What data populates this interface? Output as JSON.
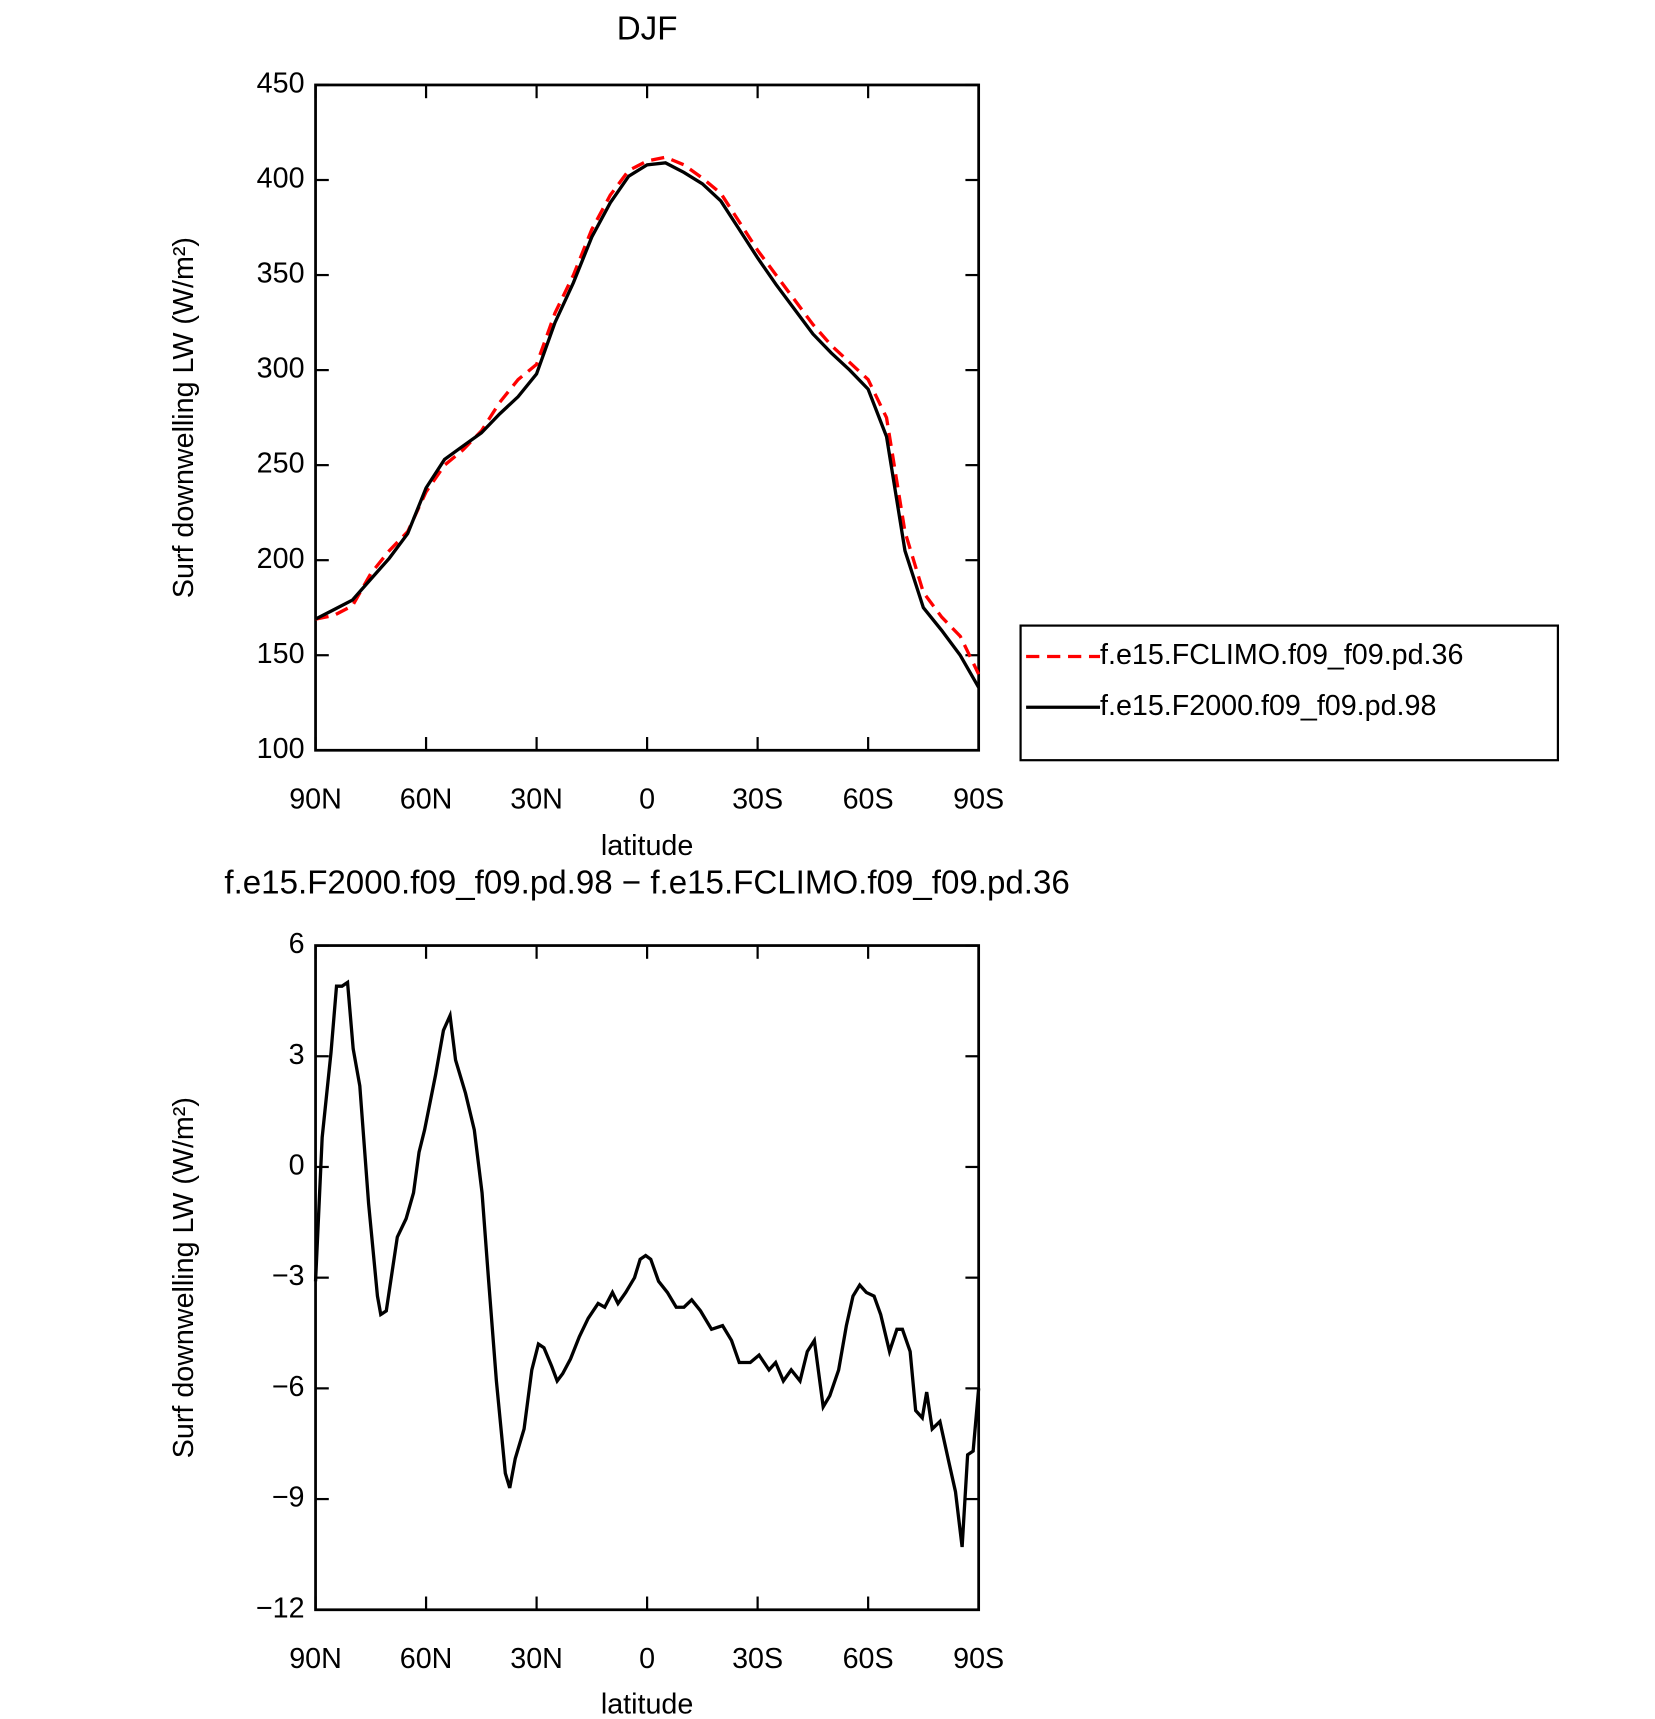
{
  "chart_data": [
    {
      "type": "line",
      "title": "DJF",
      "xlabel": "latitude",
      "ylabel": "Surf downwelling LW (W/m²)",
      "x": [
        90,
        85,
        80,
        75,
        70,
        65,
        60,
        55,
        50,
        45,
        40,
        35,
        30,
        25,
        20,
        15,
        10,
        5,
        0,
        -5,
        -10,
        -15,
        -20,
        -25,
        -30,
        -35,
        -40,
        -45,
        -50,
        -55,
        -60,
        -65,
        -70,
        -75,
        -80,
        -85,
        -90
      ],
      "series": [
        {
          "name": "f.e15.FCLIMO.f09_f09.pd.36",
          "color": "#ff0000",
          "style": "dashed",
          "values": [
            169,
            171,
            176,
            193,
            205,
            215,
            236,
            250,
            258,
            268,
            283,
            295,
            303,
            330,
            350,
            374,
            392,
            405,
            410,
            412,
            408,
            401,
            393,
            378,
            363,
            350,
            337,
            324,
            313,
            304,
            295,
            275,
            215,
            183,
            170,
            160,
            140
          ]
        },
        {
          "name": "f.e15.F2000.f09_f09.pd.98",
          "color": "#000000",
          "style": "solid",
          "values": [
            169,
            174,
            179,
            190,
            201,
            214,
            238,
            253,
            260,
            267,
            277,
            286,
            298,
            325,
            346,
            370,
            388,
            402,
            408,
            409,
            404,
            398,
            389,
            374,
            359,
            345,
            332,
            319,
            309,
            300,
            290,
            265,
            205,
            175,
            163,
            150,
            133
          ]
        }
      ],
      "xlim": [
        90,
        -90
      ],
      "xticks": [
        {
          "value": 90,
          "label": "90N"
        },
        {
          "value": 60,
          "label": "60N"
        },
        {
          "value": 30,
          "label": "30N"
        },
        0,
        {
          "value": -30,
          "label": "30S"
        },
        {
          "value": -60,
          "label": "60S"
        },
        {
          "value": -90,
          "label": "90S"
        }
      ],
      "ylim": [
        100,
        450
      ],
      "yticks": [
        100,
        150,
        200,
        250,
        300,
        350,
        400,
        450
      ],
      "legend": "right"
    },
    {
      "type": "line",
      "title": "f.e15.F2000.f09_f09.pd.98 − f.e15.FCLIMO.f09_f09.pd.36",
      "xlabel": "latitude",
      "ylabel": "Surf downwelling LW (W/m²)",
      "x": [
        90,
        88.2,
        85.8,
        84.3,
        82.8,
        81.3,
        79.8,
        78.0,
        75.6,
        73.2,
        72.3,
        70.8,
        67.8,
        65.4,
        63.4,
        61.9,
        60.4,
        57.4,
        55.3,
        53.5,
        52.0,
        49.3,
        46.9,
        44.8,
        43.0,
        40.9,
        38.5,
        37.3,
        35.8,
        33.4,
        31.3,
        29.5,
        28.0,
        25.9,
        24.4,
        22.9,
        20.8,
        18.4,
        16.0,
        13.3,
        11.5,
        9.4,
        7.9,
        5.8,
        3.4,
        1.9,
        0.4,
        -1.0,
        -3.1,
        -5.5,
        -7.9,
        -10.0,
        -12.1,
        -14.5,
        -17.5,
        -20.5,
        -22.9,
        -25.0,
        -28.0,
        -30.4,
        -33.1,
        -34.9,
        -37.0,
        -39.1,
        -41.5,
        -43.5,
        -45.4,
        -47.8,
        -49.6,
        -52.0,
        -54.1,
        -55.9,
        -57.7,
        -59.5,
        -61.6,
        -63.4,
        -65.8,
        -67.8,
        -69.3,
        -71.4,
        -72.9,
        -74.7,
        -75.9,
        -77.4,
        -79.5,
        -81.9,
        -83.7,
        -85.5,
        -87.0,
        -88.5,
        -90
      ],
      "values": [
        -3.1,
        0.8,
        3.1,
        4.9,
        4.9,
        5.0,
        3.2,
        2.2,
        -1.0,
        -3.5,
        -4.0,
        -3.9,
        -1.9,
        -1.4,
        -0.7,
        0.4,
        1.0,
        2.5,
        3.7,
        4.1,
        2.9,
        2.0,
        1.0,
        -0.7,
        -3.1,
        -5.8,
        -8.3,
        -8.7,
        -7.9,
        -7.1,
        -5.5,
        -4.8,
        -4.9,
        -5.4,
        -5.8,
        -5.6,
        -5.2,
        -4.6,
        -4.1,
        -3.7,
        -3.8,
        -3.4,
        -3.7,
        -3.4,
        -3.0,
        -2.5,
        -2.4,
        -2.5,
        -3.1,
        -3.4,
        -3.8,
        -3.8,
        -3.6,
        -3.9,
        -4.4,
        -4.3,
        -4.7,
        -5.3,
        -5.3,
        -5.1,
        -5.5,
        -5.3,
        -5.8,
        -5.5,
        -5.8,
        -5.0,
        -4.7,
        -6.5,
        -6.2,
        -5.5,
        -4.3,
        -3.5,
        -3.2,
        -3.4,
        -3.5,
        -4.0,
        -5.0,
        -4.4,
        -4.4,
        -5.0,
        -6.6,
        -6.8,
        -6.1,
        -7.1,
        -6.9,
        -8.0,
        -8.8,
        -10.3,
        -7.8,
        -7.7,
        -6.0
      ],
      "color": "#000000",
      "xlim": [
        90,
        -90
      ],
      "xticks": [
        {
          "value": 90,
          "label": "90N"
        },
        {
          "value": 60,
          "label": "60N"
        },
        {
          "value": 30,
          "label": "30N"
        },
        0,
        {
          "value": -30,
          "label": "30S"
        },
        {
          "value": -60,
          "label": "60S"
        },
        {
          "value": -90,
          "label": "90S"
        }
      ],
      "ylim": [
        -12,
        6
      ],
      "yticks": [
        {
          "value": -12,
          "label": "−12"
        },
        {
          "value": -9,
          "label": "−9"
        },
        {
          "value": -6,
          "label": "−6"
        },
        {
          "value": -3,
          "label": "−3"
        },
        0,
        3,
        6
      ]
    }
  ]
}
